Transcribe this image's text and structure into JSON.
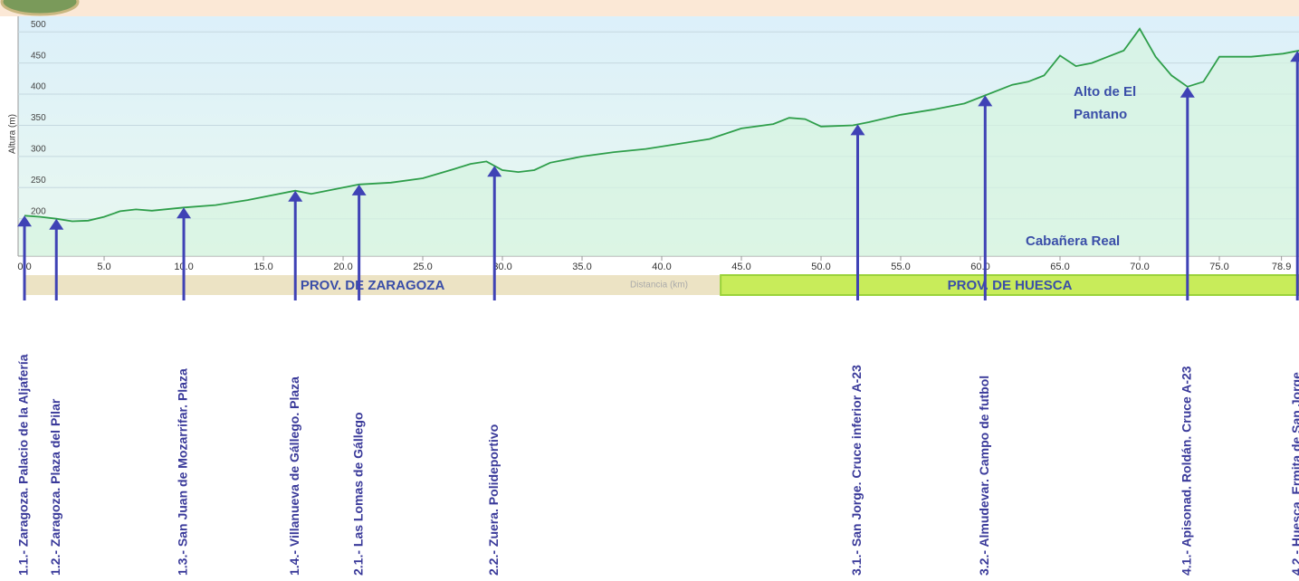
{
  "chart_data": {
    "type": "line",
    "y_label": "Altura (m)",
    "x_label": "Distancia (km)",
    "x": [
      0,
      1,
      2,
      3,
      4,
      5,
      6,
      7,
      8,
      10,
      12,
      14,
      15,
      17,
      18,
      20,
      21,
      23,
      25,
      27,
      28,
      29,
      30,
      31,
      32,
      33,
      35,
      37,
      39,
      41,
      43,
      45,
      47,
      48,
      49,
      50,
      52,
      53,
      55,
      57,
      59,
      60,
      62,
      63,
      64,
      65,
      66,
      67,
      68,
      69,
      70,
      71,
      72,
      73,
      74,
      75,
      77,
      79,
      80
    ],
    "series": [
      {
        "name": "Altura",
        "color": "#2e9e4a",
        "values": [
          205,
          203,
          200,
          196,
          197,
          203,
          212,
          215,
          213,
          218,
          222,
          230,
          235,
          245,
          240,
          250,
          255,
          258,
          265,
          280,
          288,
          292,
          278,
          275,
          278,
          290,
          300,
          307,
          312,
          320,
          328,
          345,
          352,
          362,
          360,
          348,
          350,
          355,
          367,
          375,
          385,
          395,
          415,
          420,
          430,
          462,
          445,
          450,
          460,
          470,
          505,
          460,
          430,
          412,
          420,
          460,
          460,
          465,
          470
        ]
      }
    ],
    "xlim": [
      -0.4,
      80
    ],
    "ylim": [
      140,
      525
    ],
    "xticks": [
      {
        "value": 0,
        "label": "0.0"
      },
      {
        "value": 5,
        "label": "5.0"
      },
      {
        "value": 10,
        "label": "10.0"
      },
      {
        "value": 15,
        "label": "15.0"
      },
      {
        "value": 20,
        "label": "20.0"
      },
      {
        "value": 25,
        "label": "25.0"
      },
      {
        "value": 30,
        "label": "30.0"
      },
      {
        "value": 35,
        "label": "35.0"
      },
      {
        "value": 40,
        "label": "40.0"
      },
      {
        "value": 45,
        "label": "45.0"
      },
      {
        "value": 50,
        "label": "50.0"
      },
      {
        "value": 55,
        "label": "55.0"
      },
      {
        "value": 60,
        "label": "60.0"
      },
      {
        "value": 65,
        "label": "65.0"
      },
      {
        "value": 70,
        "label": "70.0"
      },
      {
        "value": 75,
        "label": "75.0"
      },
      {
        "value": 78.9,
        "label": "78.9"
      }
    ],
    "yticks": [
      200,
      250,
      300,
      350,
      400,
      450,
      500
    ],
    "grid": true,
    "regions": [
      {
        "label": "PROV. DE ZARAGOZA",
        "from": 0,
        "to": 43.7,
        "color": "#ece3c4"
      },
      {
        "label": "PROV. DE HUESCA",
        "from": 43.7,
        "to": 80,
        "color": "#c8ec5a"
      }
    ],
    "waypoints": [
      {
        "km": 0,
        "label": "1.1.- Zaragoza. Palacio de la Aljafería"
      },
      {
        "km": 2,
        "label": "1.2.- Zaragoza. Plaza del Pilar"
      },
      {
        "km": 10,
        "label": "1.3.- San Juan de Mozarrifar. Plaza"
      },
      {
        "km": 17,
        "label": "1.4.- Villanueva de Gállego. Plaza"
      },
      {
        "km": 21,
        "label": "2.1.- Las Lomas de Gállego"
      },
      {
        "km": 29.5,
        "label": "2.2.- Zuera. Polideportivo"
      },
      {
        "km": 52.3,
        "label": "3.1.- San Jorge. Cruce inferior A-23"
      },
      {
        "km": 60.3,
        "label": "3.2.- Almudevar. Campo de futbol"
      },
      {
        "km": 73,
        "label": "4.1.- Apisonad. Roldán. Cruce A-23"
      },
      {
        "km": 79.9,
        "label": "4.2.- Huesca. Ermita de San Jorge"
      }
    ],
    "annotations": [
      "Alto de El",
      "Pantano",
      "Cabañera Real"
    ]
  }
}
